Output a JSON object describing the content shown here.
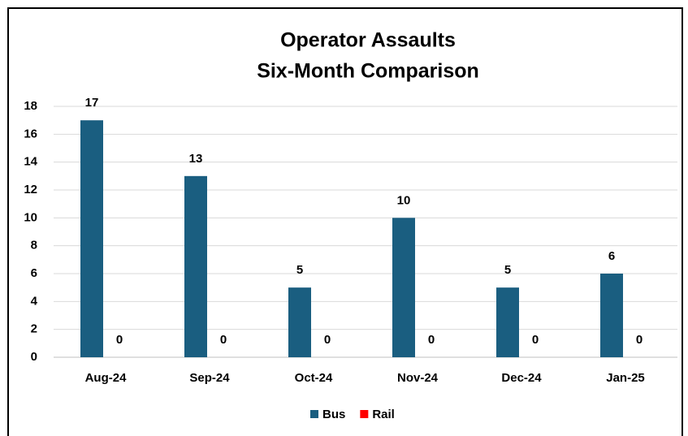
{
  "chart_data": {
    "type": "bar",
    "title": "Operator Assaults",
    "subtitle": "Six-Month Comparison",
    "categories": [
      "Aug-24",
      "Sep-24",
      "Oct-24",
      "Nov-24",
      "Dec-24",
      "Jan-25"
    ],
    "series": [
      {
        "name": "Bus",
        "color": "#1a5e80",
        "values": [
          17,
          13,
          5,
          10,
          5,
          6
        ]
      },
      {
        "name": "Rail",
        "color": "#ff0000",
        "values": [
          0,
          0,
          0,
          0,
          0,
          0
        ]
      }
    ],
    "ylim": [
      0,
      18
    ],
    "yticks": [
      0,
      2,
      4,
      6,
      8,
      10,
      12,
      14,
      16,
      18
    ],
    "grid": true,
    "legend": "bottom",
    "data_labels": true
  }
}
